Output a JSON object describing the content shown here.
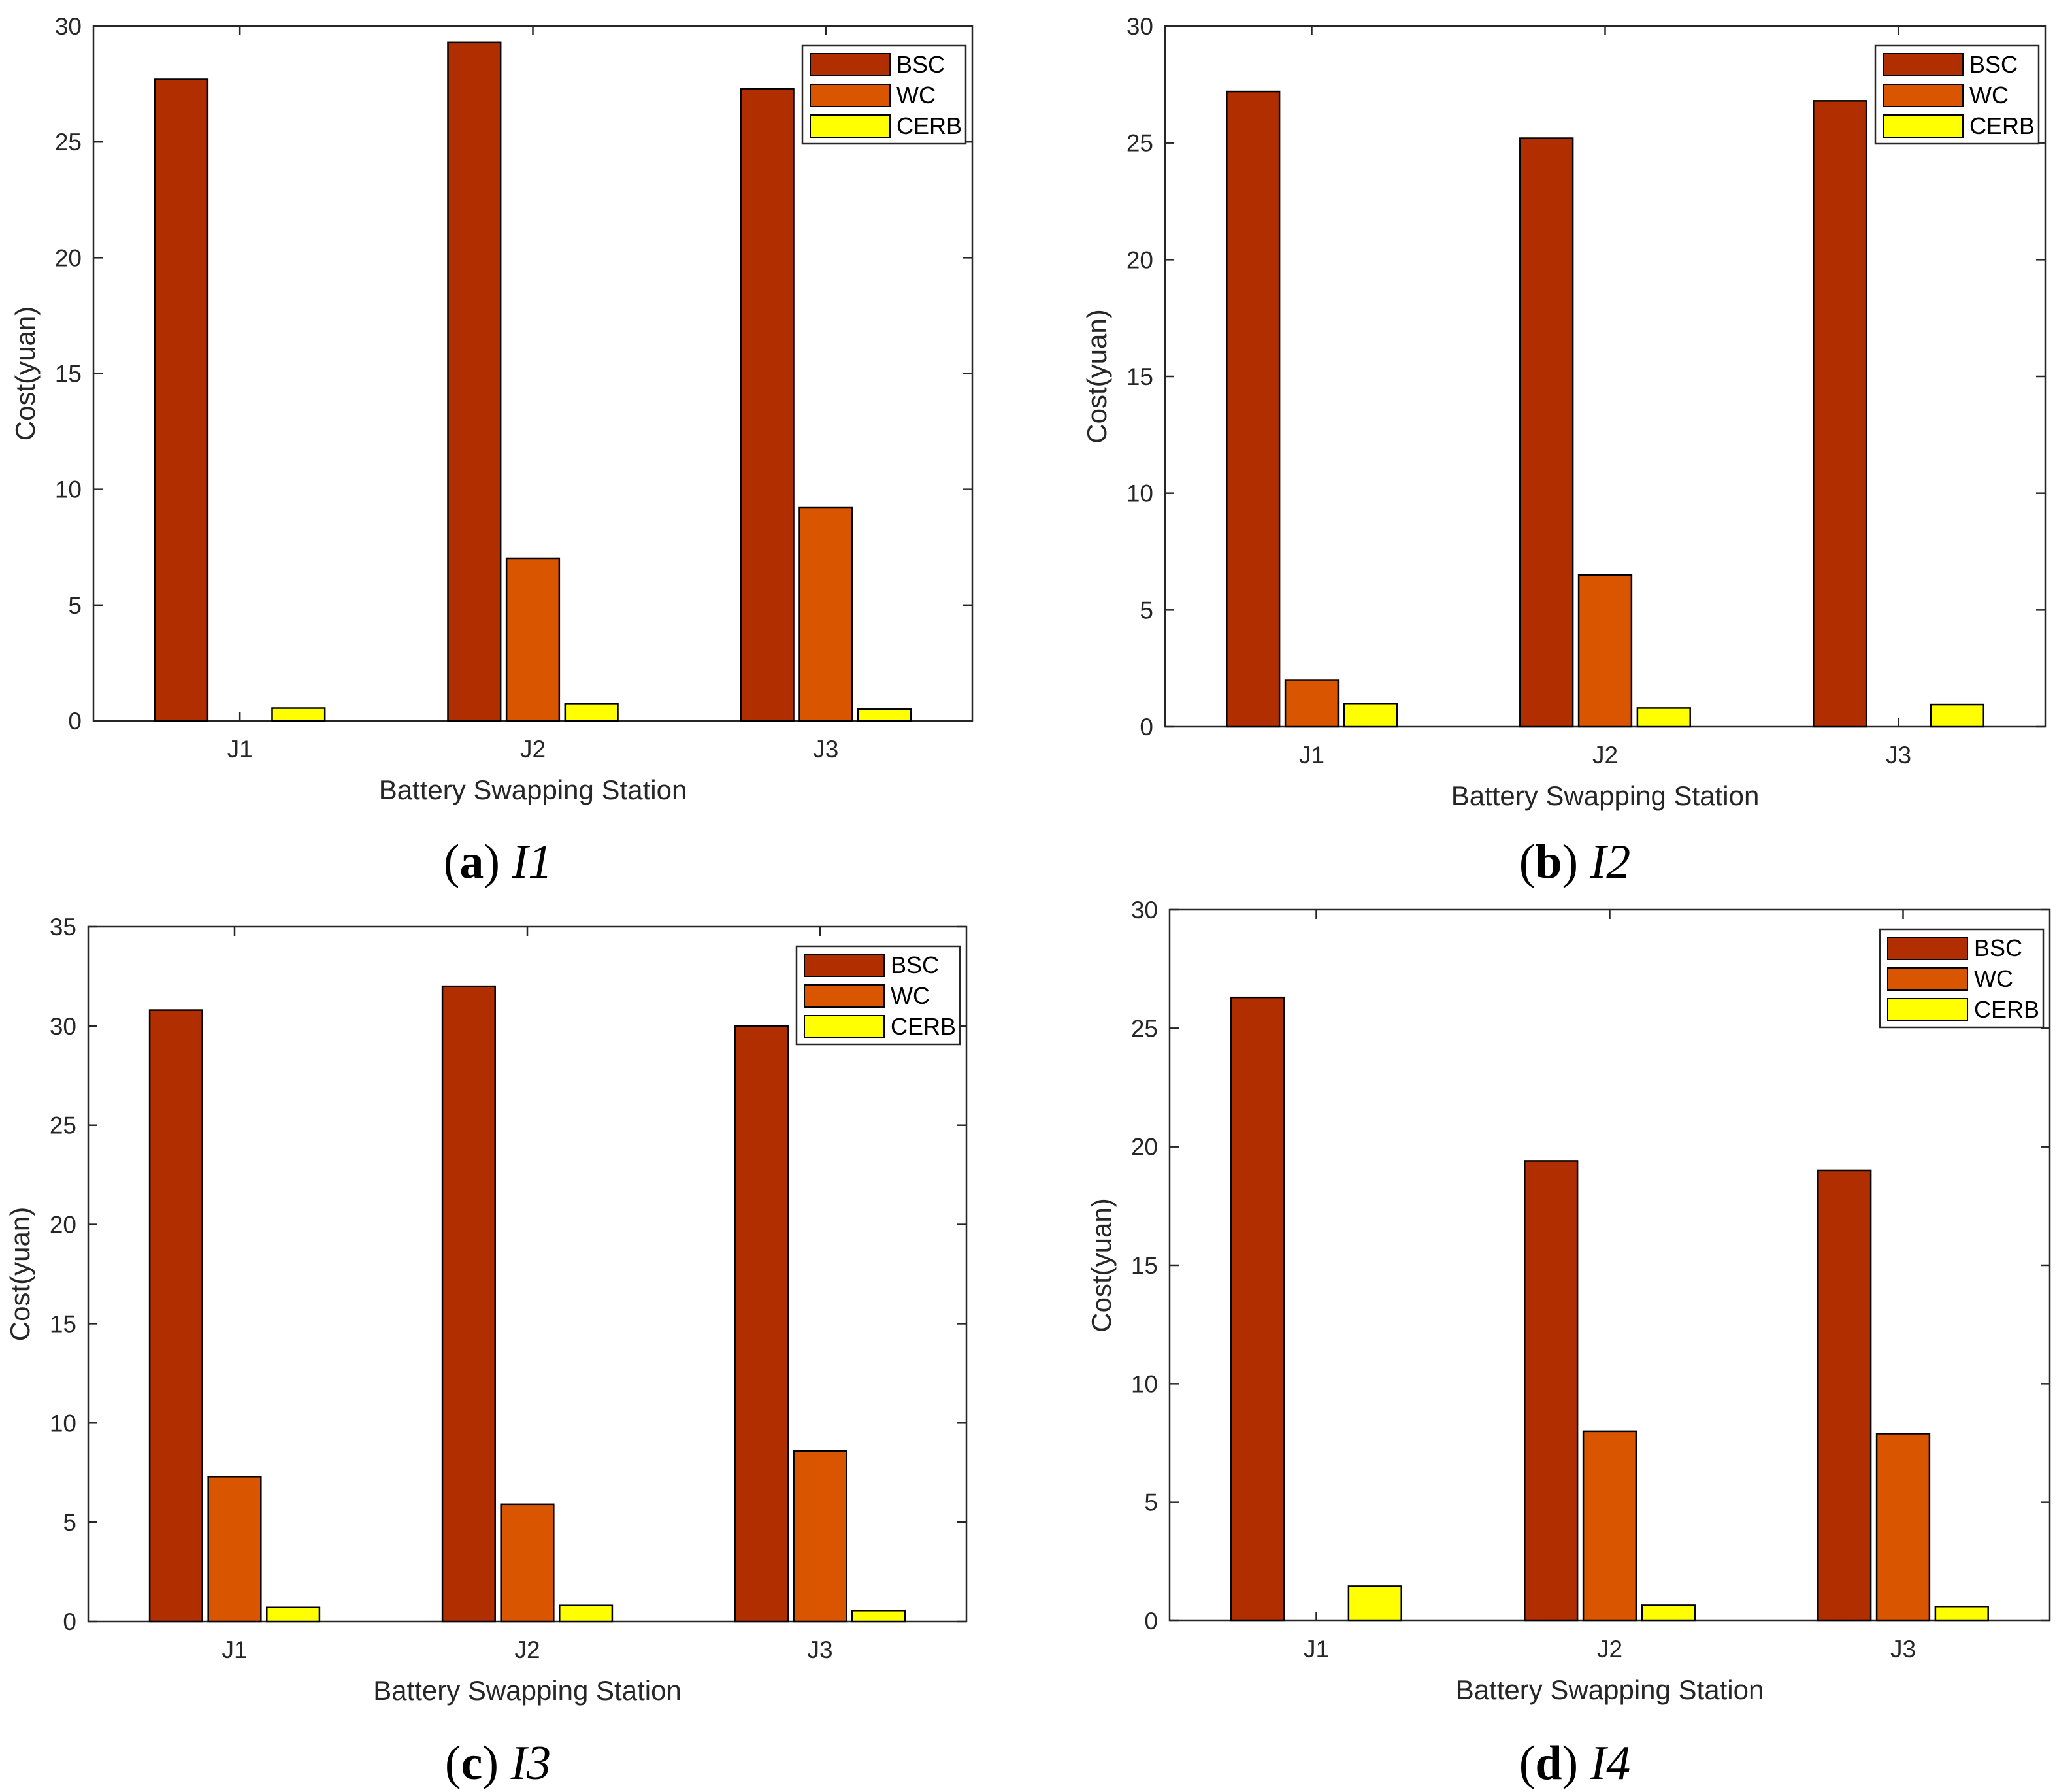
{
  "colors": {
    "BSC": "#b02e00",
    "WC": "#d95500",
    "CERB": "#ffff00"
  },
  "chart_data": [
    {
      "type": "bar",
      "panel": "(a)",
      "caption_letter": "a",
      "caption_name": "I1",
      "categories": [
        "J1",
        "J2",
        "J3"
      ],
      "series": [
        {
          "name": "BSC",
          "values": [
            27.7,
            29.3,
            27.3
          ]
        },
        {
          "name": "WC",
          "values": [
            0,
            7.0,
            9.2
          ]
        },
        {
          "name": "CERB",
          "values": [
            0.55,
            0.75,
            0.5
          ]
        }
      ],
      "xlabel": "Battery Swapping Station",
      "ylabel": "Cost(yuan)",
      "ylim": [
        0,
        30
      ],
      "yticks": [
        0,
        5,
        10,
        15,
        20,
        25,
        30
      ],
      "legend": "top-right"
    },
    {
      "type": "bar",
      "panel": "(b)",
      "caption_letter": "b",
      "caption_name": "I2",
      "categories": [
        "J1",
        "J2",
        "J3"
      ],
      "series": [
        {
          "name": "BSC",
          "values": [
            27.2,
            25.2,
            26.8
          ]
        },
        {
          "name": "WC",
          "values": [
            2.0,
            6.5,
            0
          ]
        },
        {
          "name": "CERB",
          "values": [
            1.0,
            0.8,
            0.95
          ]
        }
      ],
      "xlabel": "Battery Swapping Station",
      "ylabel": "Cost(yuan)",
      "ylim": [
        0,
        30
      ],
      "yticks": [
        0,
        5,
        10,
        15,
        20,
        25,
        30
      ],
      "legend": "top-right"
    },
    {
      "type": "bar",
      "panel": "(c)",
      "caption_letter": "c",
      "caption_name": "I3",
      "categories": [
        "J1",
        "J2",
        "J3"
      ],
      "series": [
        {
          "name": "BSC",
          "values": [
            30.8,
            32.0,
            30.0
          ]
        },
        {
          "name": "WC",
          "values": [
            7.3,
            5.9,
            8.6
          ]
        },
        {
          "name": "CERB",
          "values": [
            0.7,
            0.8,
            0.55
          ]
        }
      ],
      "xlabel": "Battery Swapping Station",
      "ylabel": "Cost(yuan)",
      "ylim": [
        0,
        35
      ],
      "yticks": [
        0,
        5,
        10,
        15,
        20,
        25,
        30,
        35
      ],
      "legend": "top-right"
    },
    {
      "type": "bar",
      "panel": "(d)",
      "caption_letter": "d",
      "caption_name": "I4",
      "categories": [
        "J1",
        "J2",
        "J3"
      ],
      "series": [
        {
          "name": "BSC",
          "values": [
            26.3,
            19.4,
            19.0
          ]
        },
        {
          "name": "WC",
          "values": [
            0,
            8.0,
            7.9
          ]
        },
        {
          "name": "CERB",
          "values": [
            1.45,
            0.65,
            0.6
          ]
        }
      ],
      "xlabel": "Battery Swapping Station",
      "ylabel": "Cost(yuan)",
      "ylim": [
        0,
        30
      ],
      "yticks": [
        0,
        5,
        10,
        15,
        20,
        25,
        30
      ],
      "legend": "top-right"
    }
  ]
}
